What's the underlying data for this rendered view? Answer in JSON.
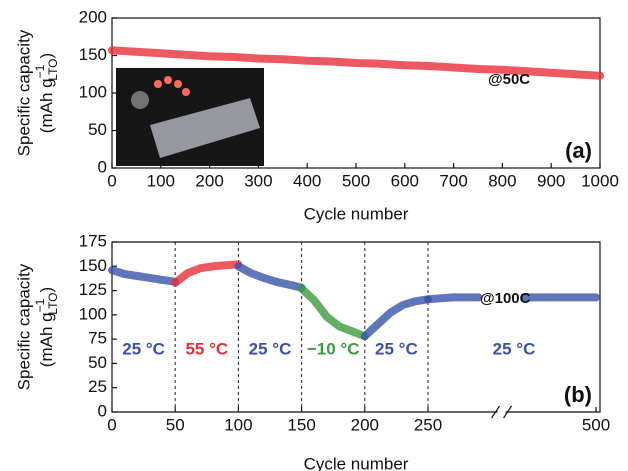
{
  "chart_data": [
    {
      "type": "line",
      "ylabel": "Specific capacity",
      "ylabel_unit": {
        "open": "(mAh g",
        "sub": "LTO",
        "sup": "−1",
        "close": ")"
      },
      "xlabel": "Cycle number",
      "annotation": "@50C",
      "panel": "(a)",
      "xlim": [
        0,
        1000
      ],
      "xticks": [
        0,
        100,
        200,
        300,
        400,
        500,
        600,
        700,
        800,
        900,
        1000
      ],
      "ylim": [
        0,
        200
      ],
      "yticks": [
        0,
        50,
        100,
        150,
        200
      ],
      "series": [
        {
          "color": "#e8303a",
          "x": [
            0,
            50,
            100,
            150,
            200,
            250,
            300,
            350,
            400,
            450,
            500,
            550,
            600,
            650,
            700,
            750,
            800,
            850,
            900,
            950,
            1000
          ],
          "values": [
            157,
            155,
            153,
            151,
            149,
            148,
            146,
            145,
            143,
            142,
            140,
            139,
            137,
            136,
            134,
            132,
            131,
            129,
            127,
            125,
            123
          ]
        }
      ]
    },
    {
      "type": "line",
      "ylabel": "Specific capacity",
      "ylabel_unit": {
        "open": "(mAh g",
        "sub": "LTO",
        "sup": "−1",
        "close": ")"
      },
      "xlabel": "Cycle number",
      "annotation": "@100C",
      "panel": "(b)",
      "xlim": [
        0,
        500
      ],
      "xbreak": [
        290,
        440
      ],
      "xticks": [
        0,
        50,
        100,
        150,
        200,
        250,
        500
      ],
      "ylim": [
        0,
        175
      ],
      "yticks": [
        0,
        25,
        50,
        75,
        100,
        125,
        150,
        175
      ],
      "dividers": [
        50,
        100,
        150,
        200,
        250
      ],
      "series": [
        {
          "name": "25 °C",
          "color": "#3a52a8",
          "x": [
            0,
            10,
            20,
            30,
            40,
            50
          ],
          "values": [
            146,
            142,
            140,
            138,
            136,
            134
          ]
        },
        {
          "name": "55 °C",
          "color": "#e8303a",
          "x": [
            50,
            60,
            70,
            80,
            90,
            100
          ],
          "values": [
            133,
            143,
            148,
            150,
            151,
            152
          ]
        },
        {
          "name": "25 °C",
          "color": "#3a52a8",
          "x": [
            100,
            110,
            120,
            130,
            140,
            150
          ],
          "values": [
            150,
            143,
            138,
            134,
            131,
            128
          ]
        },
        {
          "name": "−10 °C",
          "color": "#3f9a3f",
          "x": [
            150,
            160,
            170,
            180,
            190,
            200
          ],
          "values": [
            127,
            115,
            98,
            88,
            83,
            78
          ]
        },
        {
          "name": "25 °C",
          "color": "#3a52a8",
          "x": [
            200,
            210,
            220,
            230,
            240,
            250
          ],
          "values": [
            78,
            90,
            102,
            110,
            114,
            116
          ]
        },
        {
          "name": "25 °C",
          "color": "#3a52a8",
          "x": [
            250,
            260,
            270,
            280,
            290,
            null,
            440,
            460,
            480,
            500
          ],
          "values": [
            116,
            117,
            118,
            118,
            118,
            null,
            118,
            118,
            118,
            118
          ]
        }
      ]
    }
  ]
}
